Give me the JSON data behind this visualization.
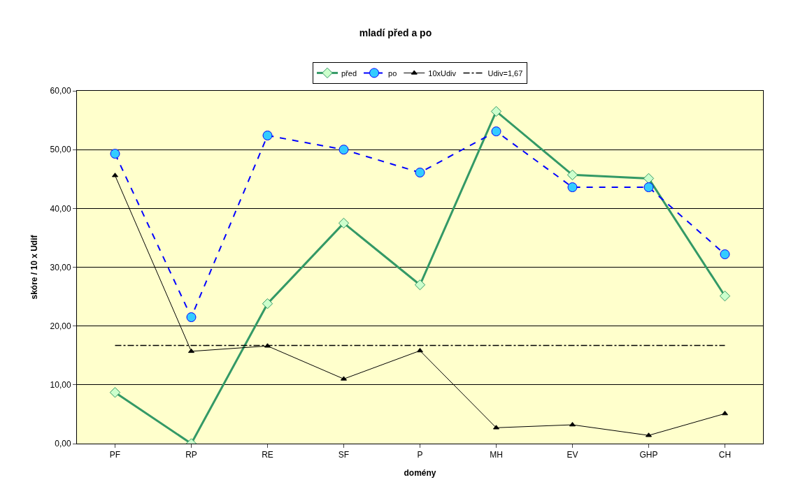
{
  "chart_data": {
    "type": "line",
    "title": "mladí před a po",
    "xlabel": "domény",
    "ylabel": "skóre / 10 x Udif",
    "categories": [
      "PF",
      "RP",
      "RE",
      "SF",
      "P",
      "MH",
      "EV",
      "GHP",
      "CH"
    ],
    "series": [
      {
        "name": "před",
        "color": "#339966",
        "marker": "diamond",
        "line_style": "solid",
        "values": [
          8.7,
          0.0,
          23.8,
          37.5,
          27.0,
          56.5,
          45.7,
          45.1,
          25.1
        ]
      },
      {
        "name": "po",
        "color": "#0000ff",
        "marker": "circle",
        "line_style": "dashed",
        "values": [
          49.3,
          21.5,
          52.4,
          50.0,
          46.1,
          53.1,
          43.6,
          43.6,
          32.2
        ]
      },
      {
        "name": "10xUdiv",
        "color": "#000000",
        "marker": "triangle",
        "line_style": "solid",
        "values": [
          45.6,
          15.7,
          16.6,
          11.0,
          15.8,
          2.7,
          3.2,
          1.4,
          5.1
        ]
      },
      {
        "name": "Udiv=1,67",
        "color": "#000000",
        "marker": "none",
        "line_style": "dashdot",
        "values": [
          16.7,
          16.7,
          16.7,
          16.7,
          16.7,
          16.7,
          16.7,
          16.7,
          16.7
        ]
      }
    ],
    "ylim": [
      0,
      60
    ],
    "yticks": [
      {
        "value": 0,
        "label": "0,00"
      },
      {
        "value": 10,
        "label": "10,00"
      },
      {
        "value": 20,
        "label": "20,00"
      },
      {
        "value": 30,
        "label": "30,00"
      },
      {
        "value": 40,
        "label": "40,00"
      },
      {
        "value": 50,
        "label": "50,00"
      },
      {
        "value": 60,
        "label": "60,00"
      }
    ],
    "grid": "y",
    "legend": "top"
  }
}
